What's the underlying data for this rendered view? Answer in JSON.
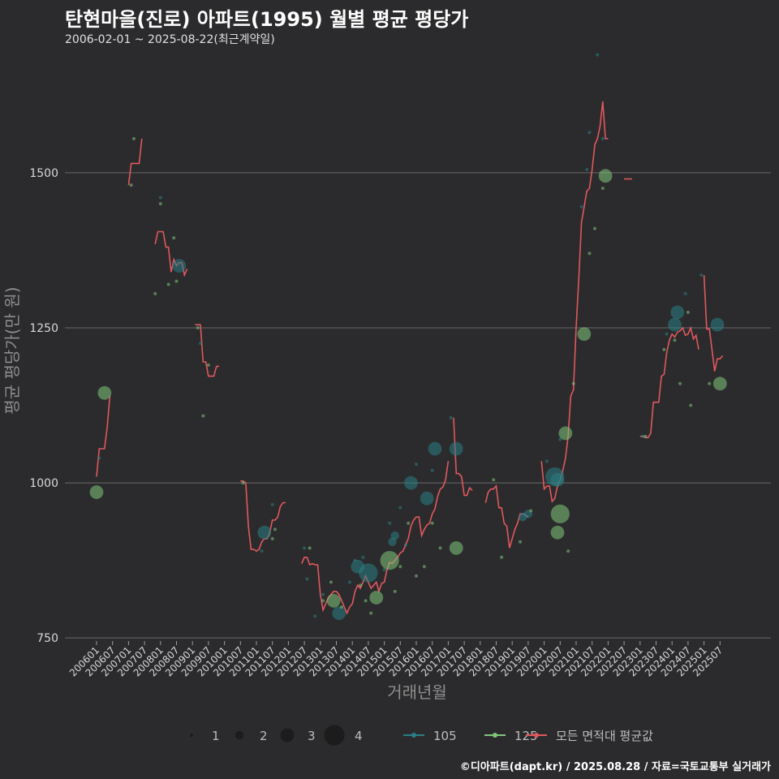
{
  "title": "탄현마을(진로) 아파트(1995) 월별 평균 평당가",
  "subtitle": "2006-02-01 ~ 2025-08-22(최근계약일)",
  "caption": "©디아파트(dapt.kr) / 2025.08.28 / 자료=국토교통부 실거래가",
  "colors": {
    "background": "#2b2b2d",
    "grid": "#6a6a6a",
    "s105": "#2a7f85",
    "s125": "#7fc77a",
    "avg": "#e0585e"
  },
  "chart_data": {
    "type": "scatter",
    "xlabel": "거래년월",
    "ylabel": "평균 평당가(만 원)",
    "ylim": [
      745,
      1700
    ],
    "yticks": [
      750,
      1000,
      1250,
      1500
    ],
    "xticks": [
      "200601",
      "200607",
      "200701",
      "200707",
      "200801",
      "200807",
      "200901",
      "200907",
      "201001",
      "201007",
      "201101",
      "201107",
      "201201",
      "201207",
      "201301",
      "201307",
      "201401",
      "201407",
      "201501",
      "201507",
      "201601",
      "201607",
      "201701",
      "201707",
      "201801",
      "201807",
      "201901",
      "201907",
      "202001",
      "202007",
      "202101",
      "202107",
      "202201",
      "202207",
      "202301",
      "202307",
      "202401",
      "202407",
      "202501",
      "202507"
    ],
    "size_legend": [
      1,
      2,
      3,
      4
    ],
    "legend": {
      "s105": "105",
      "s125": "125",
      "avg": "모든 면적대 평균값"
    },
    "series105": [
      [
        "2006-02",
        1040,
        1
      ],
      [
        "2008-01",
        1460,
        1
      ],
      [
        "2008-08",
        1350,
        3
      ],
      [
        "2009-04",
        1225,
        1
      ],
      [
        "2011-03",
        890,
        1
      ],
      [
        "2011-04",
        920,
        3
      ],
      [
        "2011-07",
        965,
        1
      ],
      [
        "2012-07",
        895,
        1
      ],
      [
        "2012-08",
        845,
        1
      ],
      [
        "2012-11",
        785,
        1
      ],
      [
        "2013-02",
        820,
        1
      ],
      [
        "2013-08",
        790,
        3
      ],
      [
        "2013-12",
        840,
        1
      ],
      [
        "2014-02",
        875,
        1
      ],
      [
        "2014-03",
        865,
        3
      ],
      [
        "2014-05",
        880,
        1
      ],
      [
        "2014-07",
        855,
        4
      ],
      [
        "2015-01",
        860,
        1
      ],
      [
        "2015-03",
        935,
        1
      ],
      [
        "2015-04",
        905,
        2
      ],
      [
        "2015-05",
        915,
        2
      ],
      [
        "2015-07",
        960,
        1
      ],
      [
        "2015-09",
        900,
        1
      ],
      [
        "2015-11",
        1000,
        3
      ],
      [
        "2016-01",
        1030,
        1
      ],
      [
        "2016-05",
        975,
        3
      ],
      [
        "2016-07",
        1020,
        1
      ],
      [
        "2016-08",
        1055,
        3
      ],
      [
        "2017-02",
        1105,
        1
      ],
      [
        "2017-04",
        1055,
        3
      ],
      [
        "2019-05",
        945,
        2
      ],
      [
        "2019-07",
        950,
        2
      ],
      [
        "2020-02",
        1035,
        1
      ],
      [
        "2020-05",
        1010,
        4
      ],
      [
        "2020-06",
        1005,
        3
      ],
      [
        "2020-07",
        1070,
        1
      ],
      [
        "2021-03",
        1445,
        1
      ],
      [
        "2021-05",
        1505,
        1
      ],
      [
        "2021-06",
        1565,
        1
      ],
      [
        "2021-09",
        1690,
        1
      ],
      [
        "2021-11",
        1555,
        1
      ],
      [
        "2023-02",
        1075,
        1
      ],
      [
        "2023-11",
        1240,
        1
      ],
      [
        "2024-02",
        1255,
        3
      ],
      [
        "2024-03",
        1275,
        3
      ],
      [
        "2024-06",
        1305,
        1
      ],
      [
        "2024-12",
        1335,
        1
      ],
      [
        "2025-06",
        1255,
        3
      ]
    ],
    "series125": [
      [
        "2006-01",
        985,
        3
      ],
      [
        "2006-04",
        1145,
        3
      ],
      [
        "2007-02",
        1480,
        1
      ],
      [
        "2007-03",
        1555,
        1
      ],
      [
        "2007-11",
        1305,
        1
      ],
      [
        "2008-01",
        1450,
        1
      ],
      [
        "2008-04",
        1320,
        1
      ],
      [
        "2008-06",
        1395,
        1
      ],
      [
        "2008-07",
        1325,
        1
      ],
      [
        "2009-03",
        1250,
        1
      ],
      [
        "2009-05",
        1108,
        1
      ],
      [
        "2009-07",
        1190,
        1
      ],
      [
        "2010-08",
        1000,
        1
      ],
      [
        "2011-07",
        910,
        1
      ],
      [
        "2011-08",
        925,
        1
      ],
      [
        "2012-09",
        895,
        1
      ],
      [
        "2013-02",
        810,
        1
      ],
      [
        "2013-05",
        840,
        1
      ],
      [
        "2013-06",
        810,
        3
      ],
      [
        "2013-09",
        800,
        1
      ],
      [
        "2014-04",
        835,
        1
      ],
      [
        "2014-06",
        810,
        1
      ],
      [
        "2014-08",
        790,
        1
      ],
      [
        "2014-10",
        815,
        3
      ],
      [
        "2015-03",
        875,
        4
      ],
      [
        "2015-05",
        825,
        1
      ],
      [
        "2015-07",
        865,
        1
      ],
      [
        "2015-10",
        935,
        1
      ],
      [
        "2016-01",
        850,
        1
      ],
      [
        "2016-04",
        865,
        1
      ],
      [
        "2016-07",
        935,
        1
      ],
      [
        "2016-10",
        895,
        1
      ],
      [
        "2017-04",
        895,
        3
      ],
      [
        "2018-06",
        1005,
        1
      ],
      [
        "2018-09",
        880,
        1
      ],
      [
        "2019-04",
        905,
        1
      ],
      [
        "2019-08",
        955,
        1
      ],
      [
        "2020-06",
        920,
        3
      ],
      [
        "2020-07",
        950,
        4
      ],
      [
        "2020-09",
        1080,
        3
      ],
      [
        "2020-10",
        890,
        1
      ],
      [
        "2020-12",
        1160,
        1
      ],
      [
        "2021-04",
        1240,
        3
      ],
      [
        "2021-06",
        1370,
        1
      ],
      [
        "2021-08",
        1410,
        1
      ],
      [
        "2021-11",
        1475,
        1
      ],
      [
        "2021-12",
        1495,
        3
      ],
      [
        "2023-03",
        1075,
        1
      ],
      [
        "2023-10",
        1215,
        1
      ],
      [
        "2024-02",
        1230,
        1
      ],
      [
        "2024-04",
        1160,
        1
      ],
      [
        "2024-07",
        1275,
        1
      ],
      [
        "2024-08",
        1125,
        1
      ],
      [
        "2025-03",
        1160,
        1
      ],
      [
        "2025-07",
        1160,
        3
      ]
    ],
    "avg_segments": [
      [
        [
          "2006-01",
          1010
        ],
        [
          "2006-02",
          1055
        ],
        [
          "2006-03",
          1055
        ],
        [
          "2006-04",
          1055
        ],
        [
          "2006-05",
          1090
        ],
        [
          "2006-06",
          1140
        ]
      ],
      [
        [
          "2007-01",
          1480
        ],
        [
          "2007-02",
          1515
        ],
        [
          "2007-03",
          1515
        ],
        [
          "2007-04",
          1515
        ],
        [
          "2007-05",
          1515
        ],
        [
          "2007-06",
          1555
        ]
      ],
      [
        [
          "2007-11",
          1385
        ],
        [
          "2007-12",
          1405
        ],
        [
          "2008-01",
          1405
        ],
        [
          "2008-02",
          1405
        ],
        [
          "2008-03",
          1380
        ],
        [
          "2008-04",
          1380
        ],
        [
          "2008-05",
          1340
        ],
        [
          "2008-06",
          1360
        ],
        [
          "2008-07",
          1350
        ],
        [
          "2008-08",
          1355
        ],
        [
          "2008-09",
          1355
        ],
        [
          "2008-10",
          1335
        ],
        [
          "2008-11",
          1345
        ]
      ],
      [
        [
          "2009-02",
          1255
        ],
        [
          "2009-03",
          1255
        ],
        [
          "2009-04",
          1255
        ],
        [
          "2009-05",
          1195
        ],
        [
          "2009-06",
          1195
        ],
        [
          "2009-07",
          1172
        ],
        [
          "2009-08",
          1172
        ],
        [
          "2009-09",
          1172
        ],
        [
          "2009-10",
          1188
        ],
        [
          "2009-11",
          1188
        ]
      ],
      [
        [
          "2010-07",
          1003
        ],
        [
          "2010-08",
          1003
        ],
        [
          "2010-09",
          1000
        ],
        [
          "2010-10",
          930
        ],
        [
          "2010-11",
          893
        ],
        [
          "2010-12",
          893
        ],
        [
          "2011-01",
          890
        ],
        [
          "2011-02",
          893
        ],
        [
          "2011-03",
          905
        ],
        [
          "2011-04",
          910
        ],
        [
          "2011-05",
          910
        ],
        [
          "2011-06",
          920
        ],
        [
          "2011-07",
          940
        ],
        [
          "2011-08",
          940
        ],
        [
          "2011-09",
          945
        ],
        [
          "2011-10",
          962
        ],
        [
          "2011-11",
          968
        ],
        [
          "2011-12",
          968
        ]
      ],
      [
        [
          "2012-06",
          870
        ],
        [
          "2012-07",
          880
        ],
        [
          "2012-08",
          880
        ],
        [
          "2012-09",
          868
        ],
        [
          "2012-10",
          870
        ],
        [
          "2012-11",
          868
        ],
        [
          "2012-12",
          868
        ],
        [
          "2013-01",
          820
        ],
        [
          "2013-02",
          795
        ],
        [
          "2013-03",
          805
        ],
        [
          "2013-04",
          815
        ],
        [
          "2013-05",
          820
        ],
        [
          "2013-06",
          825
        ],
        [
          "2013-07",
          825
        ],
        [
          "2013-08",
          820
        ],
        [
          "2013-09",
          810
        ],
        [
          "2013-10",
          800
        ],
        [
          "2013-11",
          790
        ],
        [
          "2013-12",
          800
        ],
        [
          "2014-01",
          805
        ],
        [
          "2014-02",
          825
        ],
        [
          "2014-03",
          835
        ],
        [
          "2014-04",
          830
        ],
        [
          "2014-05",
          840
        ],
        [
          "2014-06",
          850
        ],
        [
          "2014-07",
          840
        ],
        [
          "2014-08",
          830
        ],
        [
          "2014-09",
          835
        ],
        [
          "2014-10",
          840
        ],
        [
          "2014-11",
          825
        ],
        [
          "2014-12",
          838
        ],
        [
          "2015-01",
          840
        ],
        [
          "2015-02",
          860
        ],
        [
          "2015-03",
          872
        ],
        [
          "2015-04",
          870
        ],
        [
          "2015-05",
          875
        ],
        [
          "2015-06",
          880
        ],
        [
          "2015-07",
          887
        ],
        [
          "2015-08",
          890
        ],
        [
          "2015-09",
          900
        ],
        [
          "2015-10",
          910
        ],
        [
          "2015-11",
          930
        ],
        [
          "2015-12",
          940
        ],
        [
          "2016-01",
          945
        ],
        [
          "2016-02",
          945
        ],
        [
          "2016-03",
          915
        ],
        [
          "2016-04",
          925
        ],
        [
          "2016-05",
          932
        ],
        [
          "2016-06",
          935
        ],
        [
          "2016-07",
          950
        ],
        [
          "2016-08",
          958
        ],
        [
          "2016-09",
          978
        ],
        [
          "2016-10",
          990
        ],
        [
          "2016-11",
          993
        ],
        [
          "2016-12",
          1005
        ],
        [
          "2017-01",
          1035
        ]
      ],
      [
        [
          "2017-03",
          1105
        ],
        [
          "2017-04",
          1015
        ],
        [
          "2017-05",
          1015
        ],
        [
          "2017-06",
          1010
        ],
        [
          "2017-07",
          980
        ],
        [
          "2017-08",
          980
        ],
        [
          "2017-09",
          992
        ],
        [
          "2017-10",
          988
        ]
      ],
      [
        [
          "2018-03",
          968
        ],
        [
          "2018-04",
          985
        ],
        [
          "2018-05",
          990
        ],
        [
          "2018-06",
          990
        ],
        [
          "2018-07",
          995
        ],
        [
          "2018-08",
          960
        ],
        [
          "2018-09",
          960
        ],
        [
          "2018-10",
          935
        ],
        [
          "2018-11",
          930
        ],
        [
          "2018-12",
          895
        ],
        [
          "2019-01",
          910
        ],
        [
          "2019-02",
          925
        ],
        [
          "2019-03",
          935
        ],
        [
          "2019-04",
          950
        ],
        [
          "2019-05",
          950
        ],
        [
          "2019-06",
          948
        ],
        [
          "2019-07",
          945
        ]
      ],
      [
        [
          "2019-12",
          1035
        ],
        [
          "2020-01",
          990
        ],
        [
          "2020-02",
          995
        ],
        [
          "2020-03",
          995
        ],
        [
          "2020-04",
          970
        ],
        [
          "2020-05",
          975
        ],
        [
          "2020-06",
          995
        ],
        [
          "2020-07",
          1005
        ],
        [
          "2020-08",
          1020
        ],
        [
          "2020-09",
          1040
        ],
        [
          "2020-10",
          1075
        ],
        [
          "2020-11",
          1140
        ],
        [
          "2020-12",
          1150
        ],
        [
          "2021-01",
          1250
        ],
        [
          "2021-02",
          1330
        ],
        [
          "2021-03",
          1420
        ],
        [
          "2021-04",
          1445
        ],
        [
          "2021-05",
          1470
        ],
        [
          "2021-06",
          1475
        ],
        [
          "2021-07",
          1505
        ],
        [
          "2021-08",
          1545
        ],
        [
          "2021-09",
          1555
        ],
        [
          "2021-10",
          1575
        ],
        [
          "2021-11",
          1615
        ],
        [
          "2021-12",
          1555
        ],
        [
          "2022-01",
          1555
        ]
      ],
      [
        [
          "2022-07",
          1490
        ],
        [
          "2022-08",
          1490
        ],
        [
          "2022-09",
          1490
        ],
        [
          "2022-10",
          1490
        ]
      ],
      [
        [
          "2023-01",
          1075
        ],
        [
          "2023-02",
          1075
        ],
        [
          "2023-03",
          1073
        ],
        [
          "2023-04",
          1073
        ],
        [
          "2023-05",
          1080
        ],
        [
          "2023-06",
          1130
        ],
        [
          "2023-07",
          1130
        ],
        [
          "2023-08",
          1130
        ],
        [
          "2023-09",
          1172
        ],
        [
          "2023-10",
          1175
        ],
        [
          "2023-11",
          1210
        ],
        [
          "2023-12",
          1230
        ],
        [
          "2024-01",
          1240
        ],
        [
          "2024-02",
          1235
        ],
        [
          "2024-03",
          1243
        ],
        [
          "2024-04",
          1245
        ],
        [
          "2024-05",
          1250
        ],
        [
          "2024-06",
          1238
        ],
        [
          "2024-07",
          1240
        ],
        [
          "2024-08",
          1250
        ],
        [
          "2024-09",
          1232
        ],
        [
          "2024-10",
          1238
        ],
        [
          "2024-11",
          1215
        ]
      ],
      [
        [
          "2025-01",
          1335
        ],
        [
          "2025-02",
          1248
        ],
        [
          "2025-03",
          1248
        ],
        [
          "2025-04",
          1215
        ],
        [
          "2025-05",
          1180
        ],
        [
          "2025-06",
          1200
        ],
        [
          "2025-07",
          1200
        ],
        [
          "2025-08",
          1205
        ]
      ]
    ]
  }
}
